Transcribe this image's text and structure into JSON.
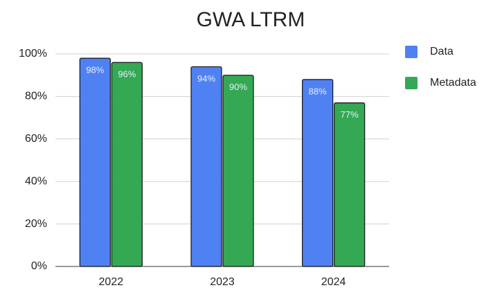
{
  "chart_data": {
    "type": "bar",
    "title": "GWA LTRM",
    "categories": [
      "2022",
      "2023",
      "2024"
    ],
    "series": [
      {
        "name": "Data",
        "color": "#4f81f2",
        "values": [
          98,
          94,
          88
        ],
        "value_labels": [
          "98%",
          "94%",
          "88%"
        ]
      },
      {
        "name": "Metadata",
        "color": "#34a853",
        "values": [
          96,
          90,
          77
        ],
        "value_labels": [
          "96%",
          "90%",
          "77%"
        ]
      }
    ],
    "ylim": [
      0,
      100
    ],
    "yticks": [
      {
        "value": 0,
        "label": "0%"
      },
      {
        "value": 20,
        "label": "20%"
      },
      {
        "value": 40,
        "label": "40%"
      },
      {
        "value": 60,
        "label": "60%"
      },
      {
        "value": 80,
        "label": "80%"
      },
      {
        "value": 100,
        "label": "100%"
      }
    ],
    "grid": true,
    "legend": "right"
  }
}
